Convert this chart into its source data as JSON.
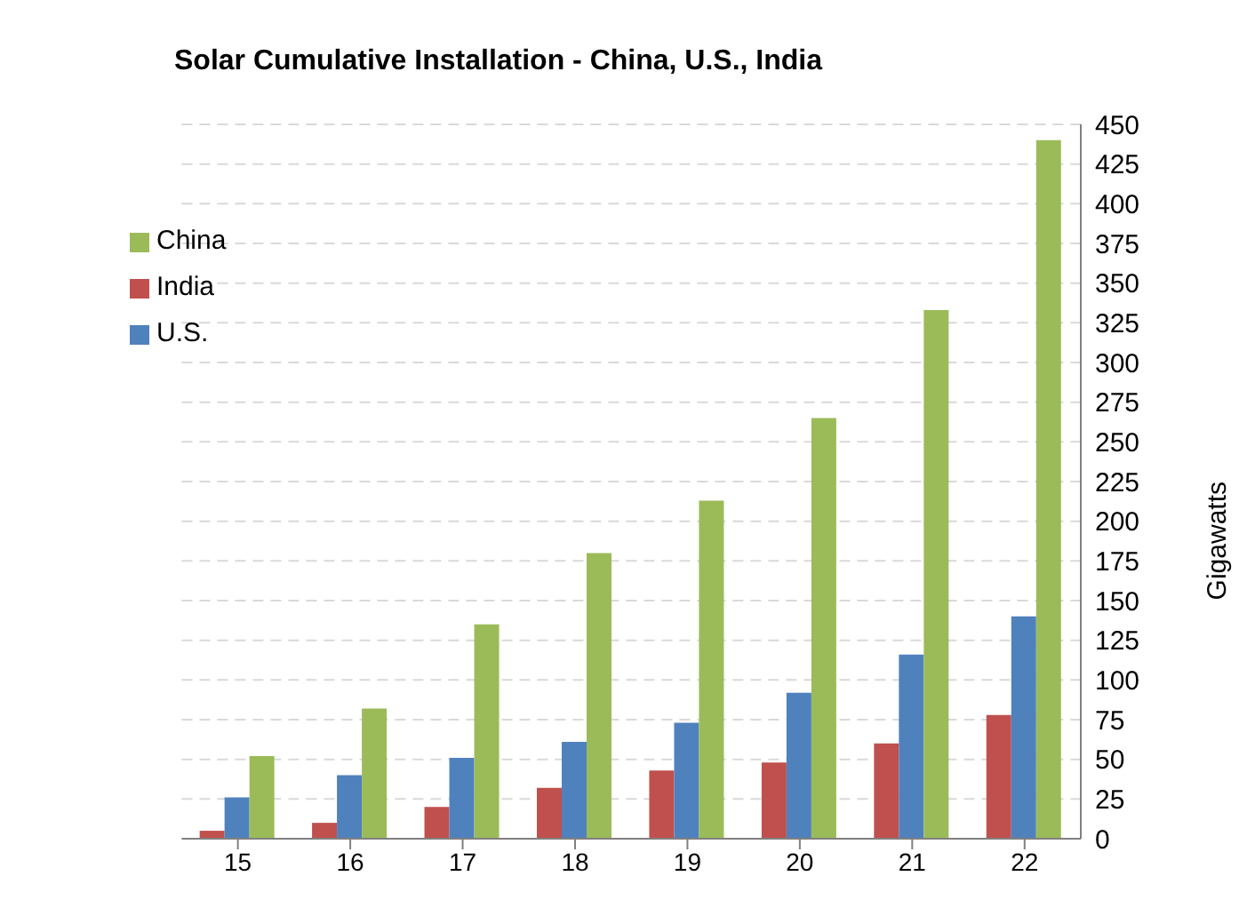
{
  "chart_data": {
    "type": "bar",
    "title": "Solar Cumulative Installation - China, U.S., India",
    "ylabel": "Gigawatts",
    "categories": [
      "15",
      "16",
      "17",
      "18",
      "19",
      "20",
      "21",
      "22"
    ],
    "series": [
      {
        "name": "India",
        "color": "#c0504d",
        "values": [
          5,
          10,
          20,
          32,
          43,
          48,
          60,
          78
        ]
      },
      {
        "name": "U.S.",
        "color": "#4f81bd",
        "values": [
          26,
          40,
          51,
          61,
          73,
          92,
          116,
          140
        ]
      },
      {
        "name": "China",
        "color": "#9bbb59",
        "values": [
          52,
          82,
          135,
          180,
          213,
          265,
          333,
          440
        ]
      }
    ],
    "ylim": [
      0,
      450
    ],
    "yticks": [
      0,
      25,
      50,
      75,
      100,
      125,
      150,
      175,
      200,
      225,
      250,
      275,
      300,
      325,
      350,
      375,
      400,
      425,
      450
    ],
    "grid": "y",
    "legend": "top left"
  }
}
